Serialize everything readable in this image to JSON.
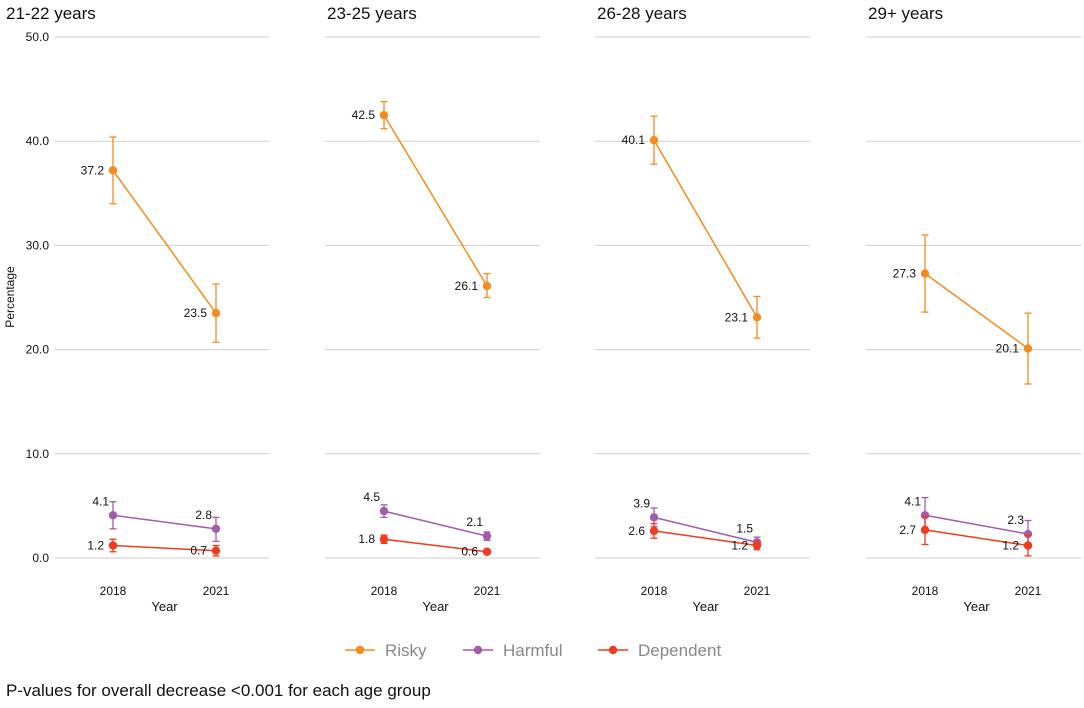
{
  "chart_data": {
    "type": "line",
    "ylabel": "Percentage",
    "xlabel": "Year",
    "x": [
      "2018",
      "2021"
    ],
    "ylim": [
      0,
      50
    ],
    "yticks": [
      "0.0",
      "10.0",
      "20.0",
      "30.0",
      "40.0",
      "50.0"
    ],
    "ytick_values": [
      0,
      10,
      20,
      30,
      40,
      50
    ],
    "grid": true,
    "legend_position": "bottom",
    "legend": [
      {
        "name": "Risky",
        "color": "#F28C1E"
      },
      {
        "name": "Harmful",
        "color": "#A25DAA"
      },
      {
        "name": "Dependent",
        "color": "#F03C1E"
      }
    ],
    "panels": [
      {
        "title": "21-22 years",
        "series": [
          {
            "name": "Risky",
            "values": [
              37.2,
              23.5
            ],
            "labels": [
              "37.2",
              "23.5"
            ],
            "err_low": [
              34.0,
              20.7
            ],
            "err_high": [
              40.4,
              26.3
            ]
          },
          {
            "name": "Harmful",
            "values": [
              4.1,
              2.8
            ],
            "labels": [
              "4.1",
              "2.8"
            ],
            "err_low": [
              2.8,
              1.6
            ],
            "err_high": [
              5.4,
              3.9
            ]
          },
          {
            "name": "Dependent",
            "values": [
              1.2,
              0.7
            ],
            "labels": [
              "1.2",
              "0.7"
            ],
            "err_low": [
              0.6,
              0.2
            ],
            "err_high": [
              1.8,
              1.2
            ]
          }
        ]
      },
      {
        "title": "23-25 years",
        "series": [
          {
            "name": "Risky",
            "values": [
              42.5,
              26.1
            ],
            "labels": [
              "42.5",
              "26.1"
            ],
            "err_low": [
              41.2,
              25.0
            ],
            "err_high": [
              43.8,
              27.3
            ]
          },
          {
            "name": "Harmful",
            "values": [
              4.5,
              2.1
            ],
            "labels": [
              "4.5",
              "2.1"
            ],
            "err_low": [
              3.9,
              1.7
            ],
            "err_high": [
              5.1,
              2.5
            ]
          },
          {
            "name": "Dependent",
            "values": [
              1.8,
              0.6
            ],
            "labels": [
              "1.8",
              "0.6"
            ],
            "err_low": [
              1.4,
              0.4
            ],
            "err_high": [
              2.2,
              0.8
            ]
          }
        ]
      },
      {
        "title": "26-28 years",
        "series": [
          {
            "name": "Risky",
            "values": [
              40.1,
              23.1
            ],
            "labels": [
              "40.1",
              "23.1"
            ],
            "err_low": [
              37.8,
              21.1
            ],
            "err_high": [
              42.4,
              25.1
            ]
          },
          {
            "name": "Harmful",
            "values": [
              3.9,
              1.5
            ],
            "labels": [
              "3.9",
              "1.5"
            ],
            "err_low": [
              3.0,
              1.0
            ],
            "err_high": [
              4.8,
              2.0
            ]
          },
          {
            "name": "Dependent",
            "values": [
              2.6,
              1.2
            ],
            "labels": [
              "2.6",
              "1.2"
            ],
            "err_low": [
              1.9,
              0.8
            ],
            "err_high": [
              3.3,
              1.6
            ]
          }
        ]
      },
      {
        "title": "29+ years",
        "series": [
          {
            "name": "Risky",
            "values": [
              27.3,
              20.1
            ],
            "labels": [
              "27.3",
              "20.1"
            ],
            "err_low": [
              23.6,
              16.7
            ],
            "err_high": [
              31.0,
              23.5
            ]
          },
          {
            "name": "Harmful",
            "values": [
              4.1,
              2.3
            ],
            "labels": [
              "4.1",
              "2.3"
            ],
            "err_low": [
              2.5,
              1.1
            ],
            "err_high": [
              5.8,
              3.6
            ]
          },
          {
            "name": "Dependent",
            "values": [
              2.7,
              1.2
            ],
            "labels": [
              "2.7",
              "1.2"
            ],
            "err_low": [
              1.3,
              0.2
            ],
            "err_high": [
              4.0,
              2.2
            ]
          }
        ]
      }
    ]
  },
  "footnote": "P-values for overall decrease <0.001 for each age group"
}
